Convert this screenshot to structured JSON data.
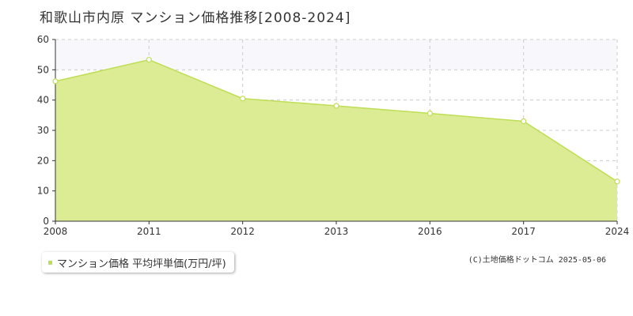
{
  "page": {
    "title": "和歌山市内原 マンション価格推移[2008-2024]",
    "credit": "(C)土地価格ドットコム 2025-05-06"
  },
  "legend": {
    "label": "マンション価格 平均坪単価(万円/坪)"
  },
  "colors": {
    "fill": "#dcec94",
    "line": "#bede55",
    "marker_fill": "#ffffff",
    "grid": "#cccccc",
    "band": "#f8f7fb",
    "axis": "#333333",
    "legend_marker": "#bede55"
  },
  "chart_data": {
    "type": "area",
    "title": "",
    "xlabel": "",
    "ylabel": "",
    "categories": [
      "2008",
      "2011",
      "2012",
      "2013",
      "2016",
      "2017",
      "2024"
    ],
    "series": [
      {
        "name": "マンション価格 平均坪単価(万円/坪)",
        "values": [
          46.2,
          53.3,
          40.5,
          38.1,
          35.6,
          33.0,
          13.1
        ]
      }
    ],
    "ylim": [
      0,
      60
    ],
    "yticks": [
      0,
      10,
      20,
      30,
      40,
      50,
      60
    ],
    "grid": true,
    "legend_position": "bottom-left"
  }
}
